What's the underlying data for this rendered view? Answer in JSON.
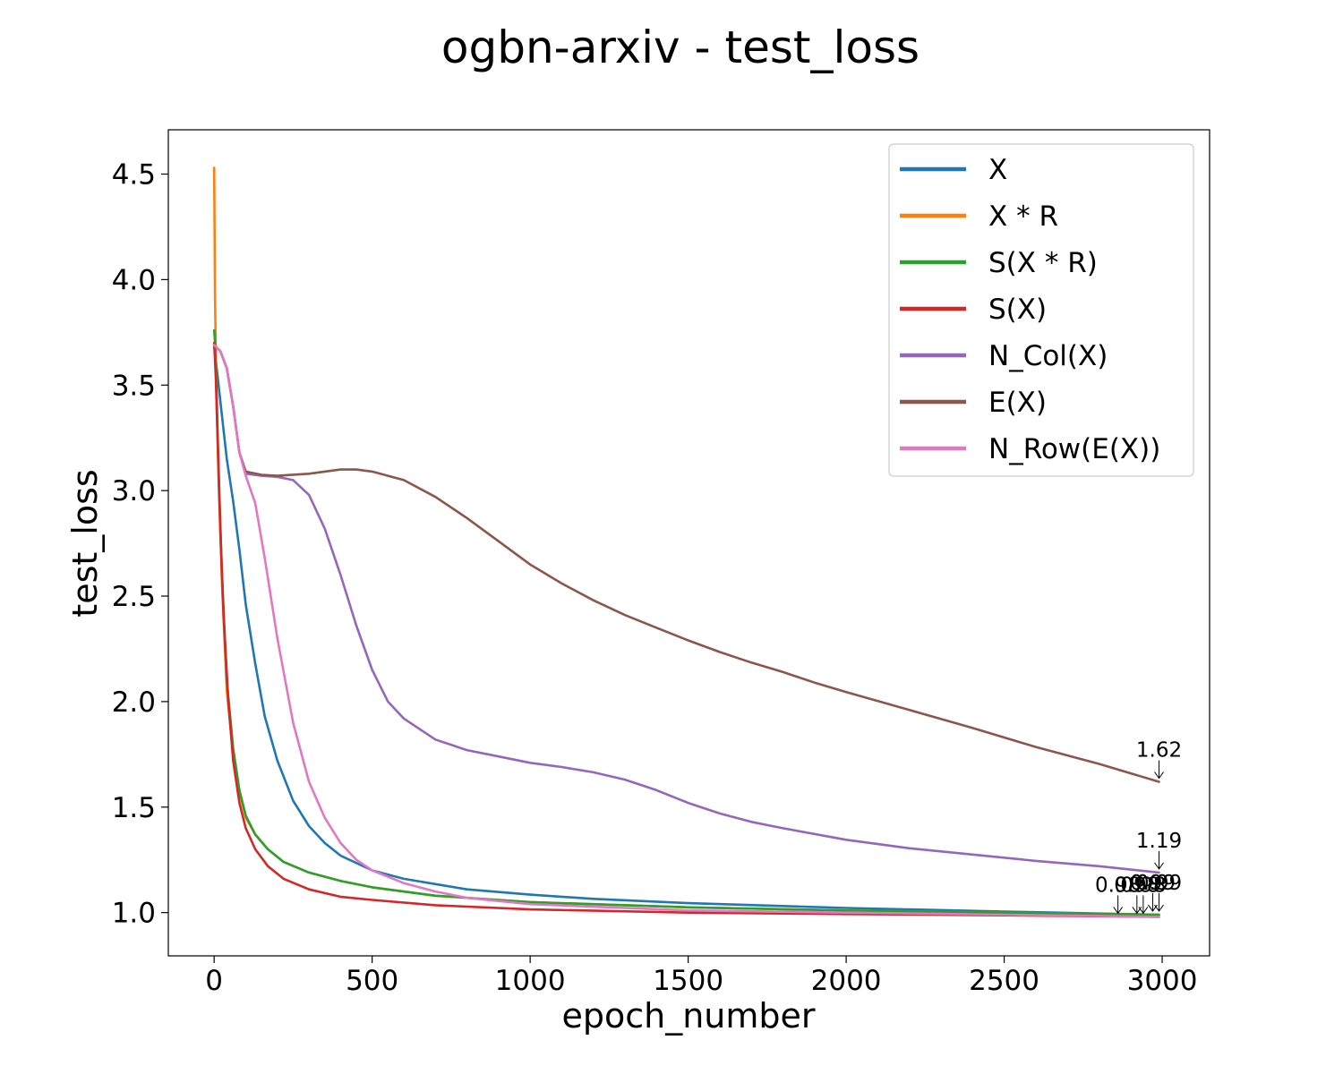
{
  "chart_data": {
    "type": "line",
    "title": "ogbn-arxiv - test_loss",
    "xlabel": "epoch_number",
    "ylabel": "test_loss",
    "xlim": [
      -145,
      3150
    ],
    "ylim": [
      0.795,
      4.71
    ],
    "xticks": [
      0,
      500,
      1000,
      1500,
      2000,
      2500,
      3000
    ],
    "xtick_labels": [
      "0",
      "500",
      "1000",
      "1500",
      "2000",
      "2500",
      "3000"
    ],
    "yticks": [
      1.0,
      1.5,
      2.0,
      2.5,
      3.0,
      3.5,
      4.0,
      4.5
    ],
    "ytick_labels": [
      "1.0",
      "1.5",
      "2.0",
      "2.5",
      "3.0",
      "3.5",
      "4.0",
      "4.5"
    ],
    "grid": false,
    "legend_position": "top-right",
    "series": [
      {
        "name": "X",
        "color": "#1f77b4",
        "points": [
          [
            0,
            3.69
          ],
          [
            20,
            3.42
          ],
          [
            40,
            3.15
          ],
          [
            60,
            2.95
          ],
          [
            80,
            2.72
          ],
          [
            100,
            2.46
          ],
          [
            130,
            2.18
          ],
          [
            160,
            1.93
          ],
          [
            200,
            1.72
          ],
          [
            250,
            1.53
          ],
          [
            300,
            1.41
          ],
          [
            350,
            1.33
          ],
          [
            400,
            1.27
          ],
          [
            500,
            1.2
          ],
          [
            600,
            1.16
          ],
          [
            700,
            1.135
          ],
          [
            800,
            1.11
          ],
          [
            1000,
            1.085
          ],
          [
            1200,
            1.065
          ],
          [
            1500,
            1.045
          ],
          [
            2000,
            1.022
          ],
          [
            2500,
            1.005
          ],
          [
            2990,
            0.99
          ]
        ]
      },
      {
        "name": "X * R",
        "color": "#ff7f0e",
        "points": [
          [
            0,
            4.53
          ],
          [
            3,
            3.9
          ],
          [
            8,
            3.4
          ],
          [
            15,
            3.0
          ],
          [
            25,
            2.55
          ],
          [
            40,
            2.05
          ],
          [
            60,
            1.75
          ],
          [
            80,
            1.57
          ],
          [
            100,
            1.45
          ],
          [
            130,
            1.37
          ],
          [
            170,
            1.3
          ],
          [
            220,
            1.24
          ],
          [
            300,
            1.19
          ],
          [
            400,
            1.15
          ],
          [
            500,
            1.12
          ],
          [
            700,
            1.08
          ],
          [
            1000,
            1.05
          ],
          [
            1500,
            1.025
          ],
          [
            2000,
            1.01
          ],
          [
            2500,
            1.0
          ],
          [
            2990,
            0.99
          ]
        ]
      },
      {
        "name": "S(X * R)",
        "color": "#2ca02c",
        "points": [
          [
            0,
            3.76
          ],
          [
            3,
            3.7
          ],
          [
            8,
            3.45
          ],
          [
            15,
            3.05
          ],
          [
            25,
            2.6
          ],
          [
            40,
            2.1
          ],
          [
            60,
            1.78
          ],
          [
            80,
            1.58
          ],
          [
            100,
            1.46
          ],
          [
            130,
            1.37
          ],
          [
            170,
            1.3
          ],
          [
            220,
            1.24
          ],
          [
            300,
            1.19
          ],
          [
            400,
            1.15
          ],
          [
            500,
            1.12
          ],
          [
            700,
            1.08
          ],
          [
            1000,
            1.05
          ],
          [
            1500,
            1.025
          ],
          [
            2000,
            1.01
          ],
          [
            2500,
            1.0
          ],
          [
            2990,
            0.99
          ]
        ]
      },
      {
        "name": "S(X)",
        "color": "#d62728",
        "points": [
          [
            0,
            3.7
          ],
          [
            5,
            3.55
          ],
          [
            10,
            3.3
          ],
          [
            20,
            2.8
          ],
          [
            30,
            2.4
          ],
          [
            45,
            2.0
          ],
          [
            60,
            1.72
          ],
          [
            80,
            1.52
          ],
          [
            100,
            1.4
          ],
          [
            130,
            1.3
          ],
          [
            170,
            1.22
          ],
          [
            220,
            1.16
          ],
          [
            300,
            1.11
          ],
          [
            400,
            1.075
          ],
          [
            500,
            1.06
          ],
          [
            700,
            1.035
          ],
          [
            1000,
            1.015
          ],
          [
            1500,
            1.0
          ],
          [
            2000,
            0.993
          ],
          [
            2500,
            0.987
          ],
          [
            2990,
            0.98
          ]
        ]
      },
      {
        "name": "N_Col(X)",
        "color": "#9467bd",
        "points": [
          [
            0,
            3.69
          ],
          [
            20,
            3.66
          ],
          [
            40,
            3.58
          ],
          [
            60,
            3.4
          ],
          [
            80,
            3.18
          ],
          [
            100,
            3.08
          ],
          [
            150,
            3.07
          ],
          [
            200,
            3.065
          ],
          [
            250,
            3.05
          ],
          [
            300,
            2.98
          ],
          [
            350,
            2.82
          ],
          [
            400,
            2.6
          ],
          [
            450,
            2.36
          ],
          [
            500,
            2.15
          ],
          [
            550,
            2.0
          ],
          [
            600,
            1.92
          ],
          [
            700,
            1.82
          ],
          [
            800,
            1.77
          ],
          [
            900,
            1.74
          ],
          [
            1000,
            1.71
          ],
          [
            1100,
            1.69
          ],
          [
            1200,
            1.665
          ],
          [
            1300,
            1.63
          ],
          [
            1400,
            1.58
          ],
          [
            1500,
            1.52
          ],
          [
            1600,
            1.47
          ],
          [
            1700,
            1.43
          ],
          [
            1800,
            1.4
          ],
          [
            2000,
            1.345
          ],
          [
            2200,
            1.305
          ],
          [
            2400,
            1.275
          ],
          [
            2600,
            1.245
          ],
          [
            2800,
            1.22
          ],
          [
            2990,
            1.19
          ]
        ]
      },
      {
        "name": "E(X)",
        "color": "#8c564b",
        "points": [
          [
            0,
            3.69
          ],
          [
            20,
            3.66
          ],
          [
            40,
            3.58
          ],
          [
            60,
            3.4
          ],
          [
            80,
            3.18
          ],
          [
            100,
            3.09
          ],
          [
            150,
            3.075
          ],
          [
            200,
            3.07
          ],
          [
            300,
            3.08
          ],
          [
            400,
            3.1
          ],
          [
            450,
            3.1
          ],
          [
            500,
            3.09
          ],
          [
            600,
            3.05
          ],
          [
            700,
            2.97
          ],
          [
            800,
            2.87
          ],
          [
            900,
            2.76
          ],
          [
            1000,
            2.65
          ],
          [
            1100,
            2.56
          ],
          [
            1200,
            2.48
          ],
          [
            1300,
            2.41
          ],
          [
            1400,
            2.35
          ],
          [
            1500,
            2.29
          ],
          [
            1600,
            2.235
          ],
          [
            1700,
            2.185
          ],
          [
            1800,
            2.14
          ],
          [
            1900,
            2.09
          ],
          [
            2000,
            2.045
          ],
          [
            2200,
            1.96
          ],
          [
            2400,
            1.875
          ],
          [
            2600,
            1.785
          ],
          [
            2800,
            1.705
          ],
          [
            2990,
            1.62
          ]
        ]
      },
      {
        "name": "N_Row(E(X))",
        "color": "#e377c2",
        "points": [
          [
            0,
            3.69
          ],
          [
            20,
            3.66
          ],
          [
            40,
            3.58
          ],
          [
            60,
            3.4
          ],
          [
            80,
            3.18
          ],
          [
            100,
            3.07
          ],
          [
            130,
            2.94
          ],
          [
            160,
            2.68
          ],
          [
            200,
            2.3
          ],
          [
            250,
            1.9
          ],
          [
            300,
            1.62
          ],
          [
            350,
            1.45
          ],
          [
            400,
            1.33
          ],
          [
            450,
            1.25
          ],
          [
            500,
            1.2
          ],
          [
            600,
            1.14
          ],
          [
            700,
            1.1
          ],
          [
            800,
            1.07
          ],
          [
            1000,
            1.04
          ],
          [
            1500,
            1.01
          ],
          [
            2000,
            1.0
          ],
          [
            2500,
            0.99
          ],
          [
            2990,
            0.98
          ]
        ]
      }
    ],
    "annotations": [
      {
        "text": "1.62",
        "x": 2990,
        "y": 1.62
      },
      {
        "text": "1.19",
        "x": 2990,
        "y": 1.19
      },
      {
        "text": "0.99",
        "x": 2990,
        "y": 0.99
      },
      {
        "text": "0.99",
        "x": 2970,
        "y": 0.99
      },
      {
        "text": "0.98",
        "x": 2940,
        "y": 0.98
      },
      {
        "text": "0.98",
        "x": 2920,
        "y": 0.98
      },
      {
        "text": "0.98",
        "x": 2860,
        "y": 0.98
      }
    ]
  }
}
